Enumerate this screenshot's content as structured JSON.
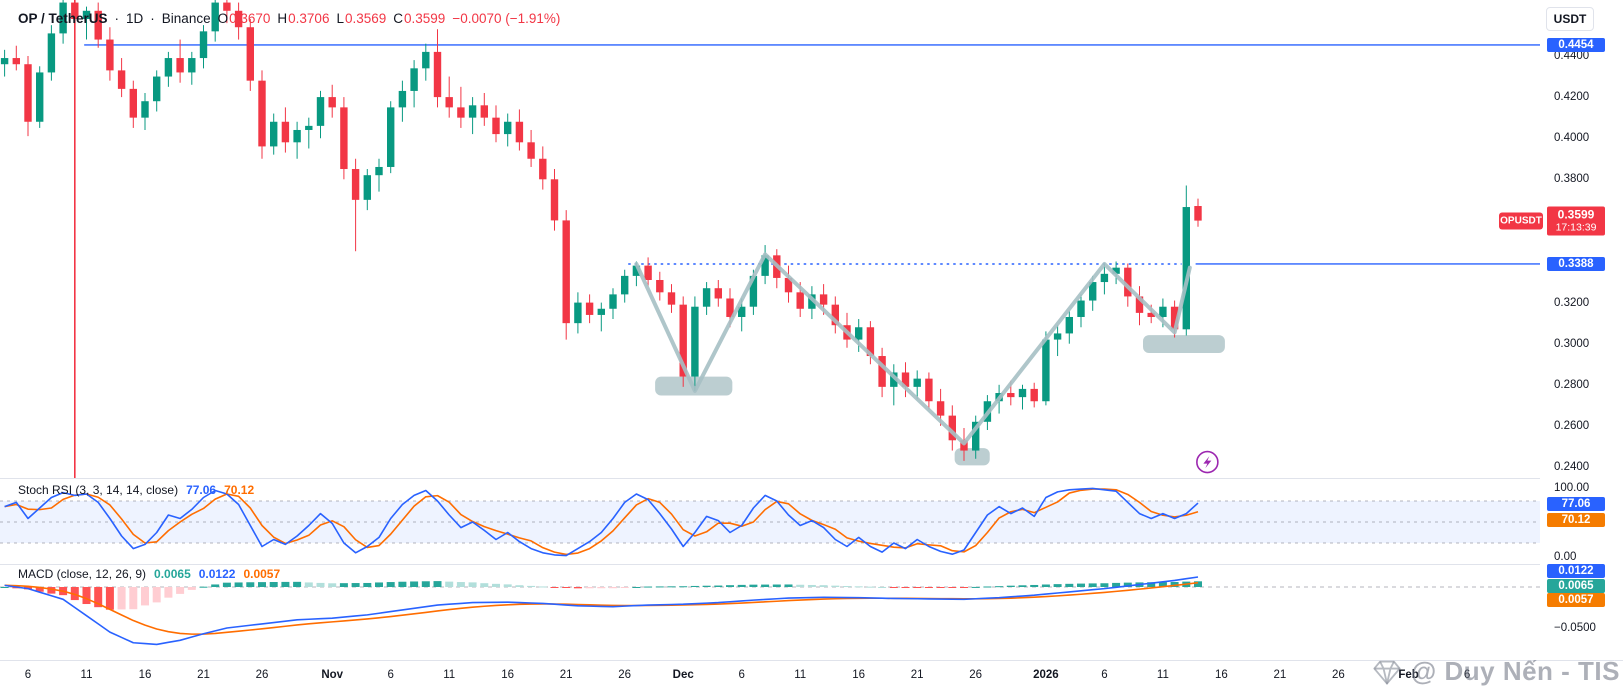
{
  "header": {
    "symbol": "OP / TetherUS",
    "separator": "·",
    "interval": "1D",
    "exchange": "Binance",
    "ohlc": {
      "o_label": "O",
      "o_value": "0.3670",
      "h_label": "H",
      "h_value": "0.3706",
      "l_label": "L",
      "l_value": "0.3569",
      "c_label": "C",
      "c_value": "0.3599"
    },
    "change": "−0.0070 (−1.91%)"
  },
  "price_axis": {
    "currency": "USDT",
    "ticks": [
      {
        "text": "0.4400",
        "value": 0.44
      },
      {
        "text": "0.4200",
        "value": 0.42
      },
      {
        "text": "0.4000",
        "value": 0.4
      },
      {
        "text": "0.3800",
        "value": 0.38
      },
      {
        "text": "0.3200",
        "value": 0.32
      },
      {
        "text": "0.3000",
        "value": 0.3
      },
      {
        "text": "0.2800",
        "value": 0.28
      },
      {
        "text": "0.2600",
        "value": 0.26
      },
      {
        "text": "0.2400",
        "value": 0.24
      }
    ],
    "level_labels": [
      {
        "text": "0.4454",
        "value": 0.4454
      },
      {
        "text": "0.3388",
        "value": 0.3388
      }
    ],
    "last": {
      "symbol": "OPUSDT",
      "price": "0.3599",
      "countdown": "17:13:39",
      "price_value": 0.3599
    }
  },
  "time_axis": {
    "labels": [
      {
        "text": "6",
        "index": 2
      },
      {
        "text": "11",
        "index": 7
      },
      {
        "text": "16",
        "index": 12
      },
      {
        "text": "21",
        "index": 17
      },
      {
        "text": "26",
        "index": 22
      },
      {
        "text": "Nov",
        "index": 28,
        "strong": true
      },
      {
        "text": "6",
        "index": 33
      },
      {
        "text": "11",
        "index": 38
      },
      {
        "text": "16",
        "index": 43
      },
      {
        "text": "21",
        "index": 48
      },
      {
        "text": "26",
        "index": 53
      },
      {
        "text": "Dec",
        "index": 58,
        "strong": true
      },
      {
        "text": "6",
        "index": 63
      },
      {
        "text": "11",
        "index": 68
      },
      {
        "text": "16",
        "index": 73
      },
      {
        "text": "21",
        "index": 78
      },
      {
        "text": "26",
        "index": 83
      },
      {
        "text": "2026",
        "index": 89,
        "strong": true
      },
      {
        "text": "6",
        "index": 94
      },
      {
        "text": "11",
        "index": 99
      },
      {
        "text": "16",
        "index": 104
      },
      {
        "text": "21",
        "index": 109
      },
      {
        "text": "26",
        "index": 114
      },
      {
        "text": "Feb",
        "index": 120,
        "strong": true
      },
      {
        "text": "6",
        "index": 125
      }
    ]
  },
  "panes": {
    "stoch": {
      "title": "Stoch RSI (3, 3, 14, 14, close)",
      "k_value": "77.06",
      "d_value": "70.12",
      "tick_top": "100.00",
      "tick_bottom": "0.00"
    },
    "macd": {
      "title": "MACD (close, 12, 26, 9)",
      "hist_value": "0.0065",
      "macd_value": "0.0122",
      "signal_value": "0.0057",
      "tick_bottom": "−0.0500"
    }
  },
  "watermark": {
    "icon": "gem-icon",
    "text": "@ Duy Nến - TIS"
  },
  "chart_data": {
    "type": "candlestick",
    "price_pane": {
      "up_color": "#089981",
      "down_color": "#f23645",
      "ylim": [
        0.235,
        0.4673
      ],
      "candles": [
        [
          0.436,
          0.443,
          0.43,
          0.439
        ],
        [
          0.439,
          0.445,
          0.433,
          0.436
        ],
        [
          0.436,
          0.44,
          0.401,
          0.408
        ],
        [
          0.408,
          0.435,
          0.405,
          0.432
        ],
        [
          0.432,
          0.455,
          0.428,
          0.451
        ],
        [
          0.451,
          0.468,
          0.446,
          0.466
        ],
        [
          0.466,
          0.47,
          0.454,
          0.458
        ],
        [
          0.458,
          0.464,
          0.448,
          0.462
        ],
        [
          0.462,
          0.466,
          0.444,
          0.448
        ],
        [
          0.448,
          0.454,
          0.428,
          0.433
        ],
        [
          0.433,
          0.439,
          0.42,
          0.424
        ],
        [
          0.424,
          0.428,
          0.405,
          0.41
        ],
        [
          0.41,
          0.422,
          0.404,
          0.418
        ],
        [
          0.418,
          0.433,
          0.413,
          0.43
        ],
        [
          0.43,
          0.442,
          0.425,
          0.439
        ],
        [
          0.439,
          0.448,
          0.427,
          0.432
        ],
        [
          0.432,
          0.442,
          0.426,
          0.439
        ],
        [
          0.439,
          0.455,
          0.434,
          0.452
        ],
        [
          0.452,
          0.469,
          0.447,
          0.466
        ],
        [
          0.466,
          0.47,
          0.456,
          0.462
        ],
        [
          0.462,
          0.466,
          0.448,
          0.454
        ],
        [
          0.454,
          0.458,
          0.423,
          0.428
        ],
        [
          0.428,
          0.433,
          0.39,
          0.396
        ],
        [
          0.396,
          0.412,
          0.392,
          0.408
        ],
        [
          0.408,
          0.415,
          0.393,
          0.398
        ],
        [
          0.398,
          0.408,
          0.39,
          0.404
        ],
        [
          0.404,
          0.41,
          0.395,
          0.406
        ],
        [
          0.406,
          0.423,
          0.4,
          0.42
        ],
        [
          0.42,
          0.426,
          0.41,
          0.415
        ],
        [
          0.415,
          0.42,
          0.38,
          0.385
        ],
        [
          0.385,
          0.39,
          0.345,
          0.37
        ],
        [
          0.37,
          0.385,
          0.365,
          0.382
        ],
        [
          0.382,
          0.39,
          0.374,
          0.386
        ],
        [
          0.386,
          0.418,
          0.383,
          0.415
        ],
        [
          0.415,
          0.428,
          0.408,
          0.423
        ],
        [
          0.423,
          0.438,
          0.415,
          0.434
        ],
        [
          0.434,
          0.446,
          0.428,
          0.442
        ],
        [
          0.442,
          0.453,
          0.415,
          0.42
        ],
        [
          0.42,
          0.43,
          0.41,
          0.415
        ],
        [
          0.415,
          0.425,
          0.405,
          0.41
        ],
        [
          0.41,
          0.42,
          0.402,
          0.416
        ],
        [
          0.416,
          0.422,
          0.406,
          0.41
        ],
        [
          0.41,
          0.416,
          0.398,
          0.402
        ],
        [
          0.402,
          0.412,
          0.396,
          0.408
        ],
        [
          0.408,
          0.414,
          0.394,
          0.398
        ],
        [
          0.398,
          0.404,
          0.386,
          0.39
        ],
        [
          0.39,
          0.396,
          0.375,
          0.38
        ],
        [
          0.38,
          0.385,
          0.355,
          0.36
        ],
        [
          0.36,
          0.365,
          0.302,
          0.31
        ],
        [
          0.31,
          0.325,
          0.305,
          0.32
        ],
        [
          0.32,
          0.324,
          0.31,
          0.314
        ],
        [
          0.314,
          0.32,
          0.306,
          0.317
        ],
        [
          0.317,
          0.327,
          0.312,
          0.324
        ],
        [
          0.324,
          0.336,
          0.32,
          0.333
        ],
        [
          0.333,
          0.34,
          0.328,
          0.338
        ],
        [
          0.338,
          0.342,
          0.328,
          0.331
        ],
        [
          0.331,
          0.335,
          0.321,
          0.325
        ],
        [
          0.325,
          0.329,
          0.315,
          0.319
        ],
        [
          0.319,
          0.323,
          0.279,
          0.284
        ],
        [
          0.284,
          0.323,
          0.277,
          0.318
        ],
        [
          0.318,
          0.33,
          0.314,
          0.327
        ],
        [
          0.327,
          0.331,
          0.318,
          0.322
        ],
        [
          0.322,
          0.327,
          0.308,
          0.313
        ],
        [
          0.313,
          0.322,
          0.306,
          0.318
        ],
        [
          0.318,
          0.336,
          0.314,
          0.333
        ],
        [
          0.333,
          0.348,
          0.329,
          0.343
        ],
        [
          0.343,
          0.346,
          0.327,
          0.332
        ],
        [
          0.332,
          0.338,
          0.32,
          0.325
        ],
        [
          0.325,
          0.33,
          0.313,
          0.317
        ],
        [
          0.317,
          0.328,
          0.312,
          0.324
        ],
        [
          0.324,
          0.329,
          0.314,
          0.319
        ],
        [
          0.319,
          0.323,
          0.305,
          0.309
        ],
        [
          0.309,
          0.315,
          0.298,
          0.302
        ],
        [
          0.302,
          0.312,
          0.296,
          0.308
        ],
        [
          0.308,
          0.311,
          0.29,
          0.294
        ],
        [
          0.294,
          0.298,
          0.274,
          0.279
        ],
        [
          0.279,
          0.29,
          0.27,
          0.286
        ],
        [
          0.286,
          0.291,
          0.274,
          0.279
        ],
        [
          0.279,
          0.287,
          0.273,
          0.283
        ],
        [
          0.283,
          0.286,
          0.268,
          0.272
        ],
        [
          0.272,
          0.278,
          0.26,
          0.265
        ],
        [
          0.265,
          0.27,
          0.248,
          0.253
        ],
        [
          0.253,
          0.259,
          0.243,
          0.248
        ],
        [
          0.248,
          0.265,
          0.244,
          0.262
        ],
        [
          0.262,
          0.275,
          0.258,
          0.272
        ],
        [
          0.272,
          0.28,
          0.266,
          0.276
        ],
        [
          0.276,
          0.282,
          0.27,
          0.274
        ],
        [
          0.274,
          0.28,
          0.268,
          0.278
        ],
        [
          0.278,
          0.281,
          0.269,
          0.272
        ],
        [
          0.272,
          0.306,
          0.27,
          0.302
        ],
        [
          0.302,
          0.309,
          0.294,
          0.305
        ],
        [
          0.305,
          0.316,
          0.3,
          0.313
        ],
        [
          0.313,
          0.324,
          0.308,
          0.321
        ],
        [
          0.321,
          0.333,
          0.316,
          0.33
        ],
        [
          0.33,
          0.339,
          0.324,
          0.334
        ],
        [
          0.334,
          0.34,
          0.329,
          0.337
        ],
        [
          0.337,
          0.339,
          0.318,
          0.323
        ],
        [
          0.323,
          0.328,
          0.309,
          0.315
        ],
        [
          0.315,
          0.319,
          0.31,
          0.313
        ],
        [
          0.313,
          0.322,
          0.308,
          0.318
        ],
        [
          0.318,
          0.321,
          0.303,
          0.307
        ],
        [
          0.307,
          0.377,
          0.304,
          0.3665
        ],
        [
          0.367,
          0.3706,
          0.3569,
          0.3599
        ]
      ],
      "vertical_line": {
        "index": 6,
        "color": "#f23645"
      },
      "horizontal_lines": [
        {
          "value": 0.4454,
          "from_index": 6.8,
          "style": "solid",
          "color": "#2962ff"
        },
        {
          "value": 0.3388,
          "from_index": 53.3,
          "dotted_until_index": 100.6,
          "style": "dotted-then-solid",
          "color": "#2962ff"
        }
      ],
      "zones": [
        {
          "i1": 55.6,
          "i2": 62.2,
          "top": 0.284,
          "bottom": 0.2748
        },
        {
          "i1": 81.2,
          "i2": 84.2,
          "top": 0.2492,
          "bottom": 0.2408
        },
        {
          "i1": 97.3,
          "i2": 104.3,
          "top": 0.3042,
          "bottom": 0.2955
        }
      ],
      "zone_color": "#90aeb2",
      "zigzag": [
        [
          54,
          0.3388
        ],
        [
          59,
          0.277
        ],
        [
          65,
          0.3435
        ],
        [
          82,
          0.2515
        ],
        [
          94,
          0.3388
        ],
        [
          100,
          0.3055
        ],
        [
          101.3,
          0.337
        ]
      ],
      "zigzag_color": "#a6c0c4",
      "marker": {
        "index": 102.8,
        "value": 0.2424,
        "type": "lightning",
        "color": "#9c27b0"
      }
    },
    "stoch_pane": {
      "ylim": [
        0,
        100
      ],
      "band_levels": [
        80,
        50,
        20
      ],
      "k_color": "#2962ff",
      "d_color": "#ff6d00",
      "d_smoothing": 3,
      "k": [
        72,
        78,
        55,
        70,
        85,
        92,
        88,
        90,
        78,
        55,
        30,
        12,
        18,
        35,
        60,
        55,
        68,
        85,
        95,
        90,
        75,
        45,
        15,
        25,
        18,
        30,
        45,
        62,
        48,
        20,
        6,
        15,
        28,
        55,
        75,
        88,
        95,
        80,
        60,
        42,
        50,
        38,
        25,
        35,
        22,
        12,
        6,
        3,
        2,
        12,
        22,
        35,
        55,
        78,
        90,
        82,
        62,
        40,
        15,
        35,
        58,
        52,
        35,
        45,
        70,
        88,
        80,
        60,
        45,
        52,
        42,
        25,
        15,
        28,
        15,
        7,
        20,
        12,
        25,
        15,
        8,
        4,
        10,
        35,
        60,
        72,
        62,
        70,
        58,
        85,
        93,
        96,
        97,
        98,
        96,
        94,
        78,
        62,
        55,
        62,
        55,
        62,
        77.06
      ]
    },
    "macd_pane": {
      "macd_color": "#2962ff",
      "signal_color": "#ff6d00",
      "signal_period": 9,
      "hist_colors": {
        "grow_above": "#26a69a",
        "fall_above": "#b2dfdb",
        "grow_below": "#ffcdd2",
        "fall_below": "#ff5252"
      },
      "grid_value": -0.05,
      "macd_points": [
        [
          0,
          0.002
        ],
        [
          2,
          -0.002
        ],
        [
          5,
          -0.015
        ],
        [
          7,
          -0.035
        ],
        [
          9,
          -0.055
        ],
        [
          11,
          -0.068
        ],
        [
          13,
          -0.07
        ],
        [
          15,
          -0.065
        ],
        [
          17,
          -0.057
        ],
        [
          19,
          -0.05
        ],
        [
          22,
          -0.045
        ],
        [
          25,
          -0.04
        ],
        [
          28,
          -0.038
        ],
        [
          31,
          -0.034
        ],
        [
          34,
          -0.028
        ],
        [
          37,
          -0.022
        ],
        [
          40,
          -0.019
        ],
        [
          43,
          -0.0185
        ],
        [
          46,
          -0.02
        ],
        [
          49,
          -0.023
        ],
        [
          52,
          -0.024
        ],
        [
          55,
          -0.022
        ],
        [
          58,
          -0.021
        ],
        [
          61,
          -0.019
        ],
        [
          64,
          -0.016
        ],
        [
          67,
          -0.0135
        ],
        [
          70,
          -0.0125
        ],
        [
          73,
          -0.013
        ],
        [
          76,
          -0.014
        ],
        [
          79,
          -0.0145
        ],
        [
          82,
          -0.015
        ],
        [
          85,
          -0.013
        ],
        [
          88,
          -0.01
        ],
        [
          91,
          -0.006
        ],
        [
          94,
          -0.002
        ],
        [
          97,
          0.003
        ],
        [
          100,
          0.008
        ],
        [
          102,
          0.0122
        ]
      ]
    }
  }
}
